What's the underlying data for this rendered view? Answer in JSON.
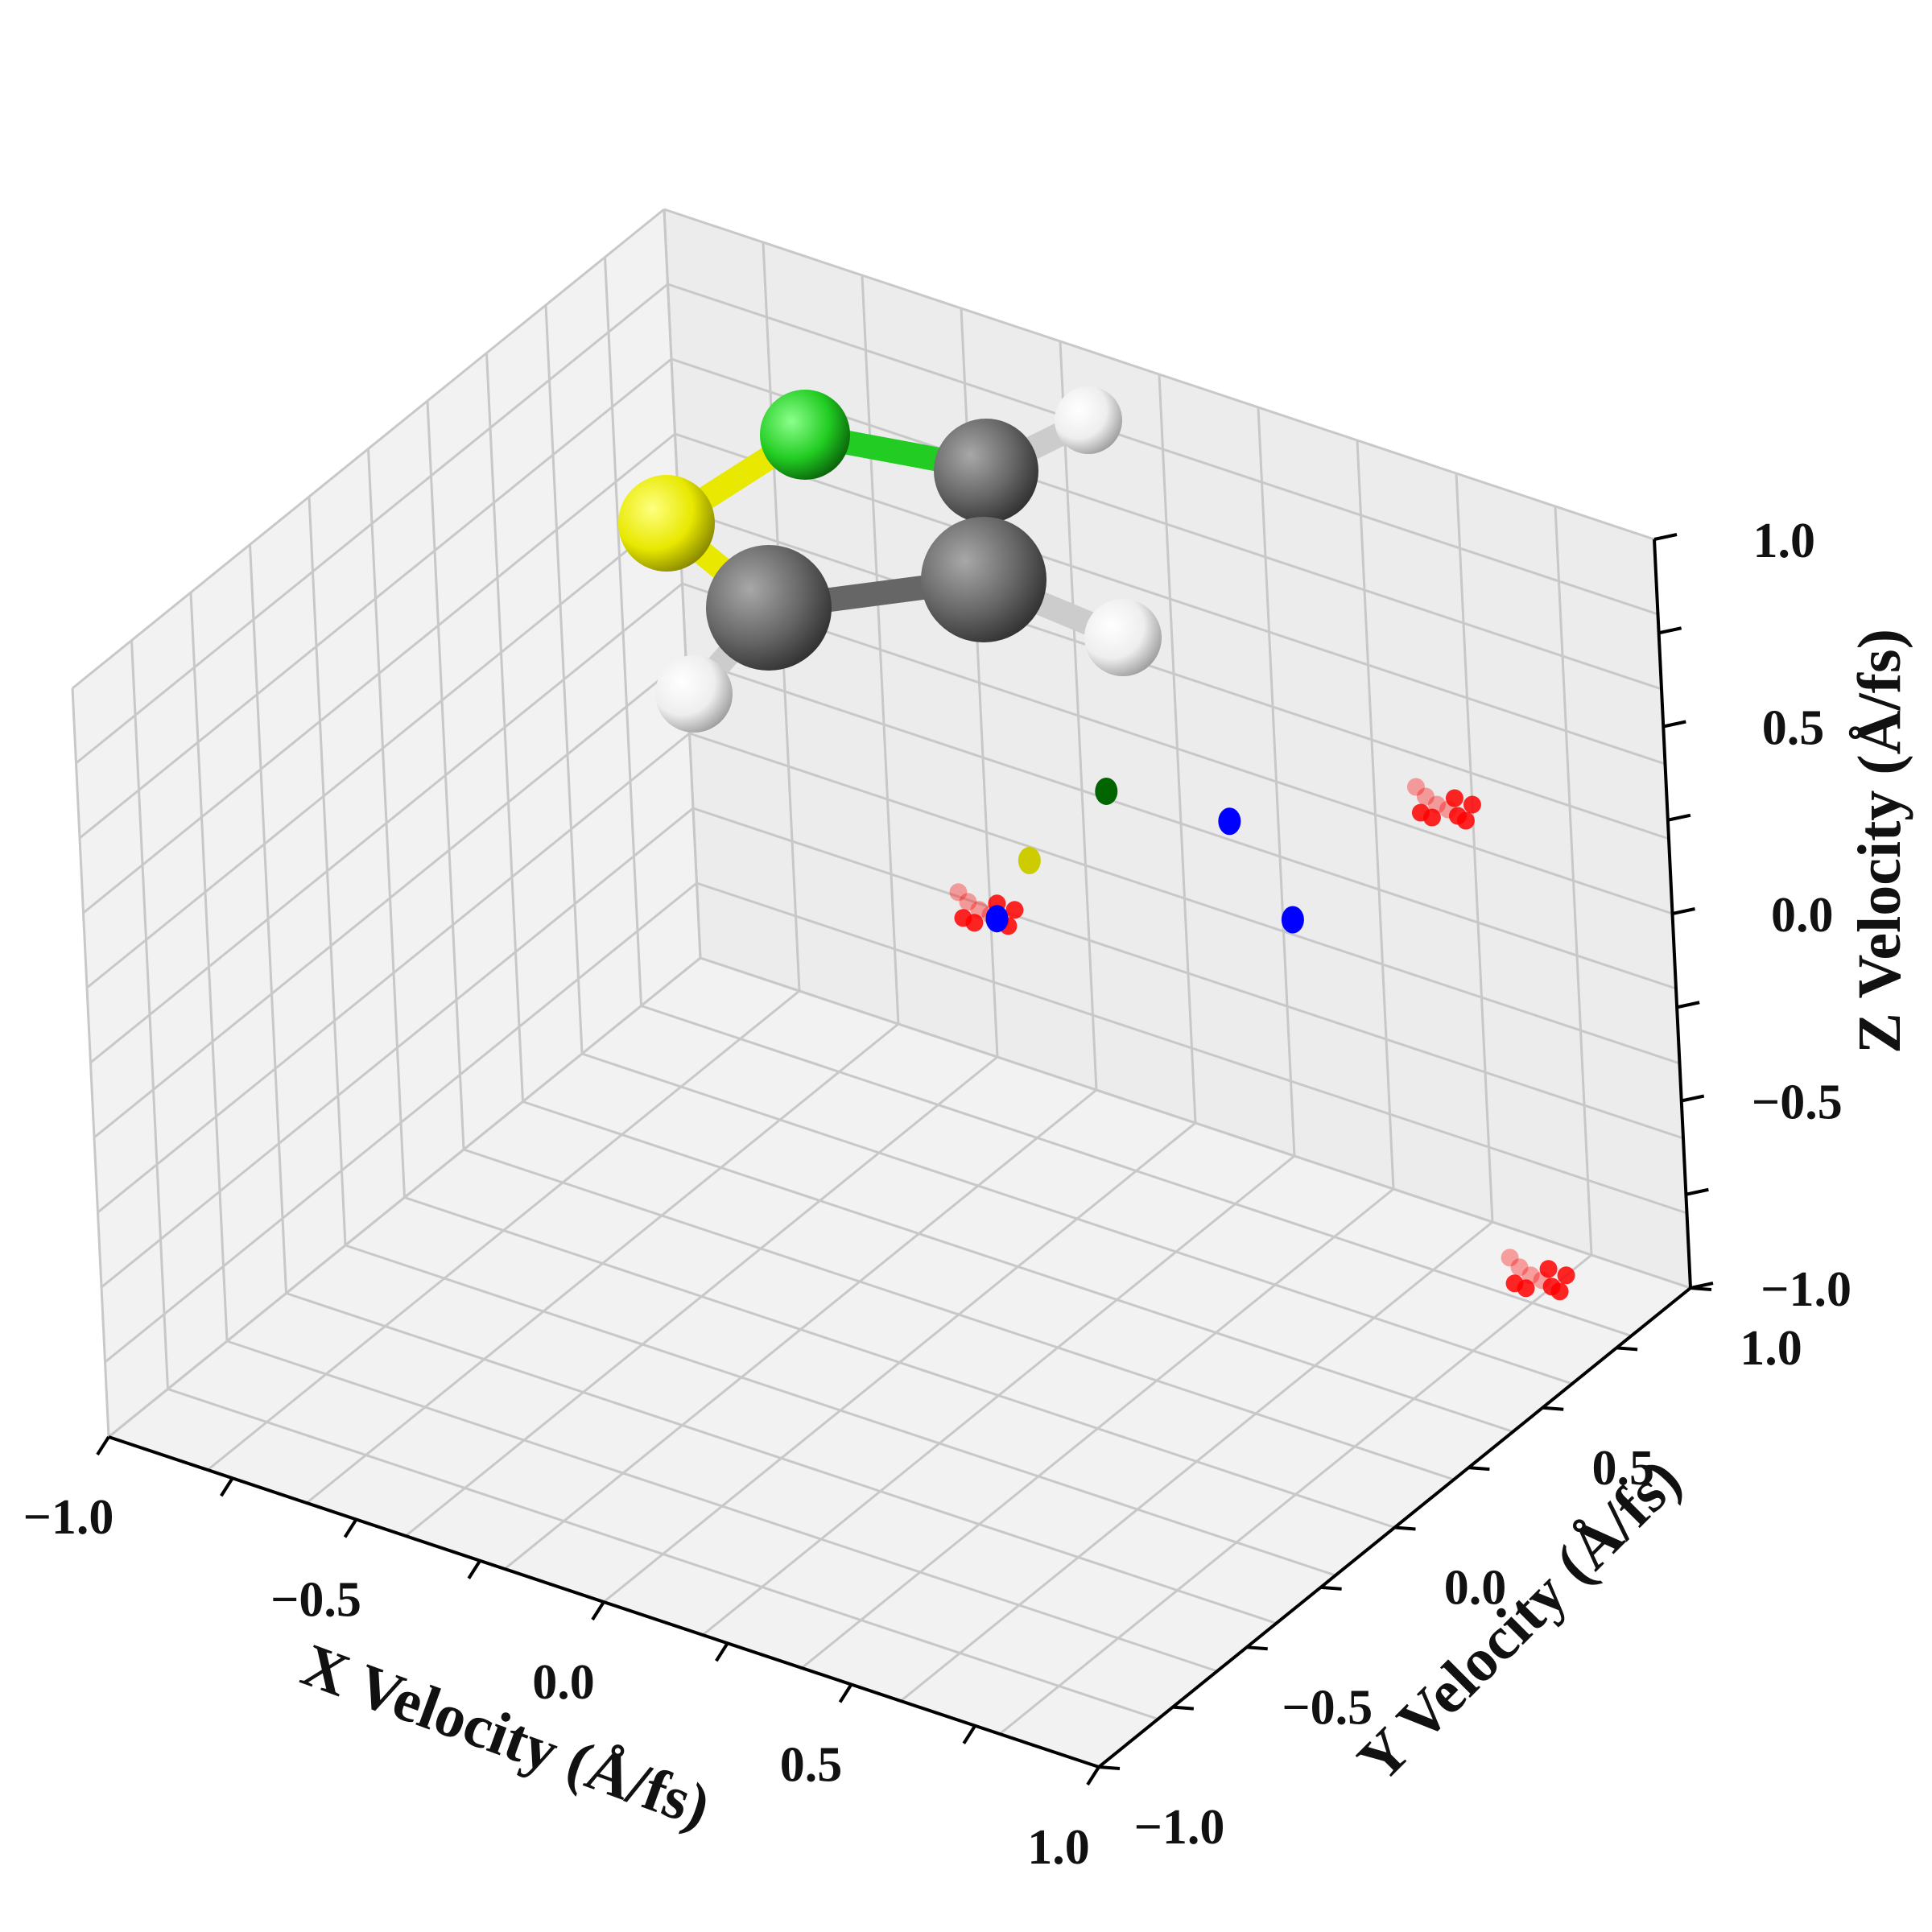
{
  "chart_data": {
    "type": "scatter",
    "projection": "3d",
    "xlabel": "X Velocity (Å/fs)",
    "ylabel": "Y Velocity (Å/fs)",
    "zlabel": "Z Velocity (Å/fs)",
    "xlim": [
      -1.0,
      1.0
    ],
    "ylim": [
      -1.0,
      1.0
    ],
    "zlim": [
      -1.0,
      1.0
    ],
    "x_ticks": [
      "−1.0",
      "−0.5",
      "0.0",
      "0.5",
      "1.0"
    ],
    "y_ticks": [
      "−1.0",
      "−0.5",
      "0.0",
      "0.5",
      "1.0"
    ],
    "z_ticks": [
      "−1.0",
      "−0.5",
      "0.0",
      "0.5",
      "1.0"
    ],
    "grid": true,
    "series": [
      {
        "color": "#ff0000",
        "points": [
          [
            -0.4,
            1.0,
            -0.62
          ],
          [
            0.55,
            1.0,
            0.08
          ],
          [
            0.98,
            0.55,
            -0.7
          ]
        ]
      },
      {
        "color": "#0000ff",
        "points": [
          [
            0.1,
            1.0,
            -0.15
          ],
          [
            0.22,
            1.0,
            -0.36
          ],
          [
            -0.04,
            0.45,
            -0.12
          ]
        ]
      },
      {
        "color": "#006400",
        "points": [
          [
            -0.15,
            1.0,
            -0.18
          ]
        ]
      },
      {
        "color": "#cccc00",
        "points": [
          [
            -0.22,
            0.85,
            -0.3
          ]
        ]
      }
    ],
    "molecule_inset": {
      "atoms": [
        {
          "element": "S",
          "color": "#e8e800"
        },
        {
          "element": "N",
          "color": "#22cc22"
        },
        {
          "element": "C",
          "color": "#666666"
        },
        {
          "element": "C",
          "color": "#666666"
        },
        {
          "element": "C",
          "color": "#666666"
        },
        {
          "element": "H",
          "color": "#f2f2f2"
        },
        {
          "element": "H",
          "color": "#f2f2f2"
        },
        {
          "element": "H",
          "color": "#f2f2f2"
        }
      ]
    }
  }
}
